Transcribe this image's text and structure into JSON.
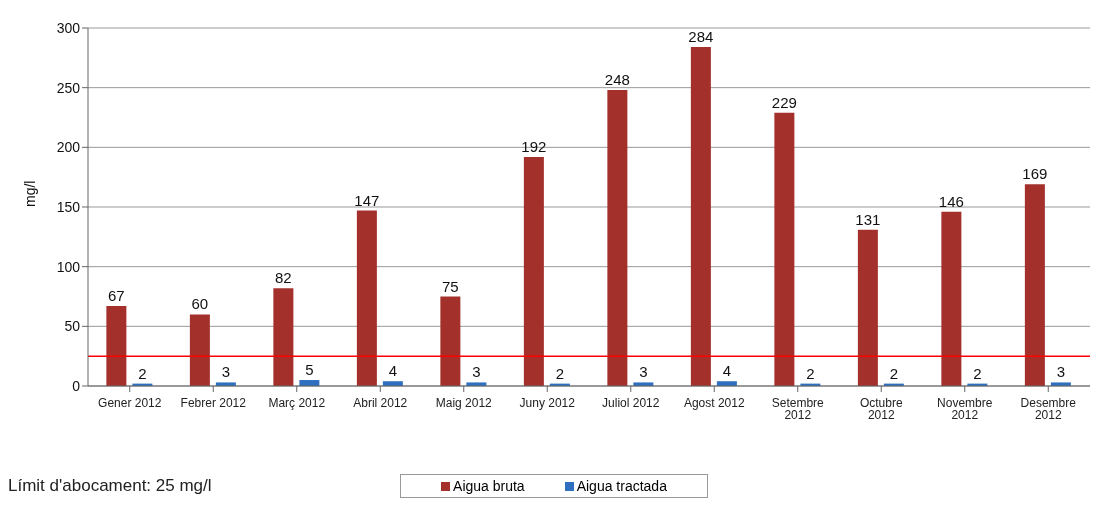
{
  "chart_data": {
    "type": "bar",
    "ylabel": "mg/l",
    "categories": [
      "Gener 2012",
      "Febrer 2012",
      "Març 2012",
      "Abril 2012",
      "Maig 2012",
      "Juny 2012",
      "Juliol 2012",
      "Agost 2012",
      "Setembre 2012",
      "Octubre 2012",
      "Novembre 2012",
      "Desembre 2012"
    ],
    "series": [
      {
        "name": "Aigua bruta",
        "color": "#a3302b",
        "values": [
          67,
          60,
          82,
          147,
          75,
          192,
          248,
          284,
          229,
          131,
          146,
          169
        ]
      },
      {
        "name": "Aigua tractada",
        "color": "#2f6fc0",
        "values": [
          2,
          3,
          5,
          4,
          3,
          2,
          3,
          4,
          2,
          2,
          2,
          3
        ]
      }
    ],
    "ylim": [
      0,
      300
    ],
    "yticks": [
      0,
      50,
      100,
      150,
      200,
      250,
      300
    ],
    "grid": "y",
    "data_labels": true,
    "legend": "bottom",
    "ref_lines": [
      {
        "axis": "y",
        "value": 25,
        "color": "#ff0000"
      }
    ],
    "annotations": [
      "Límit d'abocament: 25 mg/l"
    ]
  }
}
